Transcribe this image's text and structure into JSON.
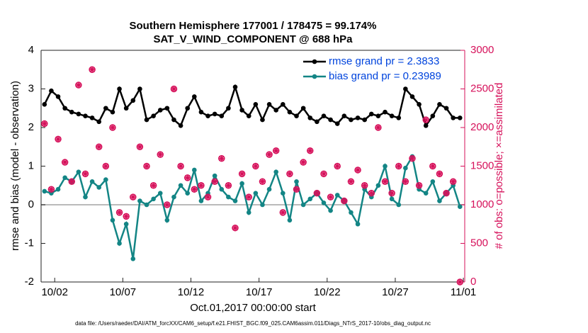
{
  "chart_data": {
    "type": "line",
    "title": "Southern Hemisphere 177001 / 178475 = 99.174%",
    "subtitle": "SAT_V_WIND_COMPONENT @ 688 hPa",
    "x_label": "Oct.01,2017 00:00:00 start",
    "y_label": "rmse and bias (model - observation)",
    "y2_label": "# of obs: o=possible; ×=assimilated",
    "footnote": "data file: /Users/raeder/DAI/ATM_forcXX/CAM6_setup/f.e21.FHIST_BGC.f09_025.CAM6assim.011/Diags_NTrS_2017-10/obs_diag_output.nc",
    "x": [
      0.25,
      0.75,
      1.25,
      1.75,
      2.25,
      2.75,
      3.25,
      3.75,
      4.25,
      4.75,
      5.25,
      5.75,
      6.25,
      6.75,
      7.25,
      7.75,
      8.25,
      8.75,
      9.25,
      9.75,
      10.25,
      10.75,
      11.25,
      11.75,
      12.25,
      12.75,
      13.25,
      13.75,
      14.25,
      14.75,
      15.25,
      15.75,
      16.25,
      16.75,
      17.25,
      17.75,
      18.25,
      18.75,
      19.25,
      19.75,
      20.25,
      20.75,
      21.25,
      21.75,
      22.25,
      22.75,
      23.25,
      23.75,
      24.25,
      24.75,
      25.25,
      25.75,
      26.25,
      26.75,
      27.25,
      27.75,
      28.25,
      28.75,
      29.25,
      29.75,
      30.25,
      30.75
    ],
    "series": [
      {
        "name": "rmse grand pr = 2.3833",
        "color": "#000000",
        "marker": "dot",
        "values": [
          2.6,
          2.95,
          2.8,
          2.5,
          2.4,
          2.35,
          2.3,
          2.25,
          2.15,
          2.5,
          2.4,
          3.0,
          2.5,
          2.7,
          3.0,
          2.2,
          2.3,
          2.45,
          2.5,
          2.2,
          2.05,
          2.5,
          2.8,
          2.4,
          2.3,
          2.35,
          2.3,
          2.5,
          3.05,
          2.45,
          2.3,
          2.6,
          2.2,
          2.6,
          2.45,
          2.6,
          2.4,
          2.3,
          2.5,
          2.25,
          2.15,
          2.3,
          2.2,
          2.1,
          2.3,
          2.2,
          2.25,
          2.2,
          2.35,
          2.3,
          2.4,
          2.3,
          2.25,
          3.0,
          2.8,
          2.6,
          2.05,
          2.3,
          2.6,
          2.5,
          2.25,
          2.25
        ]
      },
      {
        "name": "bias grand pr = 0.23989",
        "color": "#138585",
        "marker": "dot",
        "values": [
          0.35,
          0.3,
          0.4,
          0.7,
          0.6,
          0.85,
          0.2,
          0.6,
          0.45,
          0.65,
          -0.4,
          -1.0,
          -0.5,
          -1.4,
          0.1,
          0.0,
          0.15,
          0.3,
          -0.4,
          0.2,
          0.5,
          0.3,
          0.9,
          0.1,
          0.3,
          0.75,
          0.4,
          0.2,
          0.1,
          0.55,
          -0.2,
          0.3,
          0.0,
          0.4,
          0.85,
          0.3,
          -0.4,
          0.6,
          0.0,
          0.15,
          0.3,
          0.05,
          -0.15,
          0.25,
          0.1,
          -0.2,
          -0.5,
          0.4,
          0.2,
          0.5,
          1.0,
          0.15,
          0.0,
          0.95,
          1.25,
          0.4,
          0.3,
          0.6,
          0.1,
          0.3,
          0.5,
          -0.05
        ]
      },
      {
        "color": "#d6105a",
        "marker": "circle",
        "axis": "y2",
        "values": [
          2050,
          1200,
          1850,
          1550,
          1300,
          2550,
          1400,
          2750,
          1750,
          1500,
          2000,
          900,
          850,
          1100,
          1750,
          1500,
          1250,
          1650,
          1000,
          2500,
          1500,
          1350,
          1200,
          1250,
          1100,
          1300,
          1600,
          1250,
          700,
          1400,
          1100,
          1500,
          1300,
          1650,
          1700,
          900,
          1400,
          1200,
          1550,
          1700,
          1150,
          1400,
          1100,
          1500,
          1050,
          1300,
          1450,
          1250,
          1150,
          2000,
          1300,
          1150,
          1500,
          1300,
          1600,
          1250,
          2100,
          1500,
          1400,
          1150,
          1300,
          0
        ]
      },
      {
        "color": "#d6105a",
        "marker": "asterisk",
        "axis": "y2",
        "values": [
          2050,
          1200,
          1850,
          1550,
          1300,
          2550,
          1400,
          2750,
          1750,
          1500,
          2000,
          900,
          850,
          1100,
          1750,
          1500,
          1250,
          1650,
          1000,
          2500,
          1500,
          1350,
          1200,
          1250,
          1100,
          1300,
          1600,
          1250,
          700,
          1400,
          1100,
          1500,
          1300,
          1650,
          1700,
          900,
          1400,
          1200,
          1550,
          1700,
          1150,
          1400,
          1100,
          1500,
          1050,
          1300,
          1450,
          1250,
          1150,
          2000,
          1300,
          1150,
          1500,
          1300,
          1600,
          1250,
          2100,
          1500,
          1400,
          1150,
          1300,
          0
        ]
      }
    ],
    "reference_line": 0,
    "xlim": [
      0,
      31.1
    ],
    "xticks": [
      {
        "value": 1,
        "label": "10/02"
      },
      {
        "value": 6,
        "label": "10/07"
      },
      {
        "value": 11,
        "label": "10/12"
      },
      {
        "value": 16,
        "label": "10/17"
      },
      {
        "value": 21,
        "label": "10/22"
      },
      {
        "value": 26,
        "label": "10/27"
      },
      {
        "value": 31,
        "label": "11/01"
      }
    ],
    "ylim": [
      -2,
      4
    ],
    "yticks": [
      -2,
      -1,
      0,
      1,
      2,
      3,
      4
    ],
    "y2lim": [
      0,
      3000
    ],
    "y2ticks": [
      0,
      500,
      1000,
      1500,
      2000,
      2500,
      3000
    ],
    "y2_color": "#d6105a",
    "legend_text_color": "#0044dd",
    "legend": "northeast",
    "grid": false
  }
}
